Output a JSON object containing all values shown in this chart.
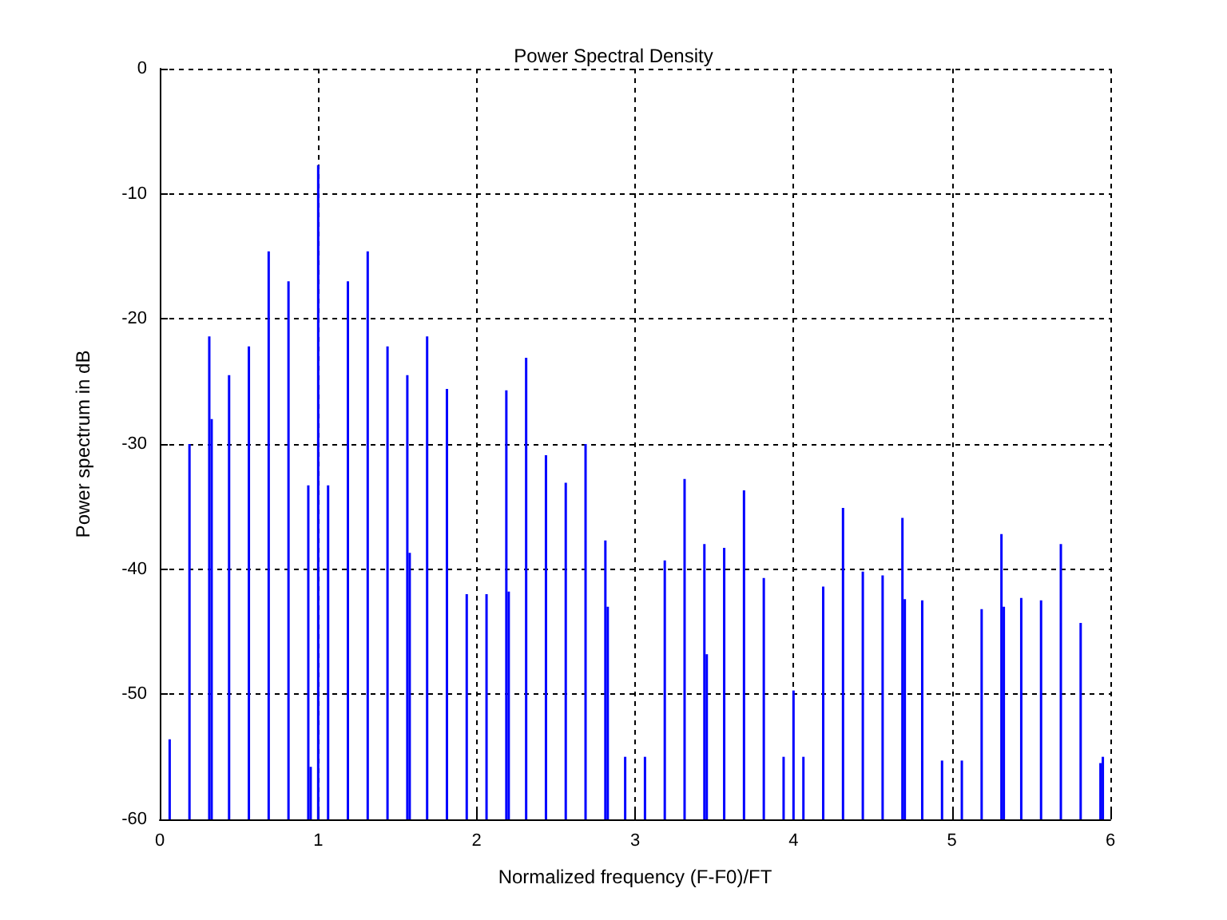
{
  "chart_data": {
    "type": "bar",
    "title": "Power Spectral Density",
    "xlabel": "Normalized frequency (F-F0)/FT",
    "ylabel": "Power spectrum in dB",
    "x": [
      0.0625,
      0.1875,
      0.3125,
      0.3275,
      0.4375,
      0.5625,
      0.6875,
      0.8125,
      0.9375,
      0.9525,
      1.0,
      1.0625,
      1.1875,
      1.3125,
      1.4375,
      1.5625,
      1.5775,
      1.6875,
      1.8125,
      1.9375,
      2.0625,
      2.1875,
      2.2025,
      2.3125,
      2.4375,
      2.5625,
      2.6875,
      2.8125,
      2.8275,
      2.9375,
      3.0625,
      3.1875,
      3.3125,
      3.4375,
      3.4525,
      3.5625,
      3.6875,
      3.8125,
      3.9375,
      4.0,
      4.0625,
      4.1875,
      4.3125,
      4.4375,
      4.5625,
      4.6875,
      4.7025,
      4.8125,
      4.9375,
      5.0625,
      5.1875,
      5.3125,
      5.3275,
      5.4375,
      5.5625,
      5.6875,
      5.8125,
      5.9375,
      5.9525
    ],
    "values": [
      6.4,
      30,
      38.6,
      32,
      35.5,
      37.8,
      45.4,
      43,
      26.7,
      4.2,
      52.3,
      26.7,
      43,
      45.4,
      37.8,
      35.5,
      21.3,
      38.6,
      34.4,
      18,
      18,
      34.3,
      18.2,
      36.9,
      29.1,
      26.9,
      30,
      22.3,
      17,
      5,
      5,
      20.7,
      27.2,
      22,
      13.2,
      21.7,
      26.3,
      19.3,
      5,
      10.3,
      5,
      18.6,
      24.9,
      19.8,
      19.5,
      24.1,
      17.6,
      17.5,
      4.7,
      4.7,
      16.8,
      22.8,
      17,
      17.7,
      17.5,
      22,
      15.7,
      4.5,
      5
    ],
    "base": [
      -60,
      -60,
      -60,
      -60,
      -60,
      -60,
      -60,
      -60,
      -60,
      -60,
      -60,
      -60,
      -60,
      -60,
      -60,
      -60,
      -60,
      -60,
      -60,
      -60,
      -60,
      -60,
      -60,
      -60,
      -60,
      -60,
      -60,
      -60,
      -60,
      -60,
      -60,
      -60,
      -60,
      -60,
      -60,
      -60,
      -60,
      -60,
      -60,
      -60,
      -60,
      -60,
      -60,
      -60,
      -60,
      -60,
      -60,
      -60,
      -60,
      -60,
      -60,
      -60,
      -60,
      -60,
      -60,
      -60,
      -60,
      -60,
      -60
    ],
    "color": "#0000ff",
    "xlim": [
      0,
      6
    ],
    "xticks": [
      0,
      1,
      2,
      3,
      4,
      5,
      6
    ],
    "ylim": [
      -60,
      0
    ],
    "yticks": [
      -60,
      -50,
      -40,
      -30,
      -20,
      -10,
      0
    ],
    "grid": true
  }
}
